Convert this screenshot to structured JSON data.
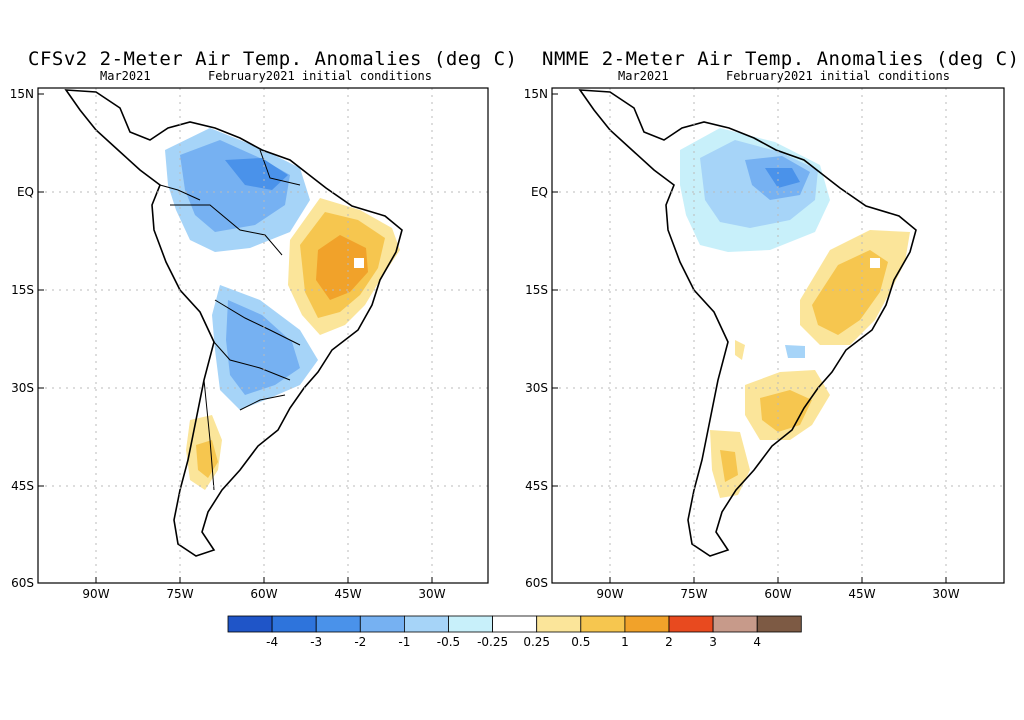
{
  "panels": [
    {
      "title": "CFSv2 2-Meter Air Temp. Anomalies (deg C)",
      "month": "Mar2021",
      "init": "February2021 initial conditions"
    },
    {
      "title": "NMME 2-Meter Air Temp. Anomalies (deg C)",
      "month": "Mar2021",
      "init": "February2021 initial conditions"
    }
  ],
  "axes": {
    "lat_labels": [
      "15N",
      "EQ",
      "15S",
      "30S",
      "45S",
      "60S"
    ],
    "lon_labels": [
      "90W",
      "75W",
      "60W",
      "45W",
      "30W"
    ]
  },
  "colorbar": {
    "labels": [
      "-4",
      "-3",
      "-2",
      "-1",
      "-0.5",
      "-0.25",
      "0.25",
      "0.5",
      "1",
      "2",
      "3",
      "4"
    ],
    "colors": [
      "#1f55c8",
      "#2e74dc",
      "#4a92ea",
      "#76b1f2",
      "#a6d4f8",
      "#c8f0fa",
      "#ffffff",
      "#fbe59a",
      "#f6c64f",
      "#f1a22a",
      "#e84a1f",
      "#c79a8a",
      "#7d5a44"
    ]
  },
  "colors": {
    "land_outline": "#000000",
    "grid": "#bbbbbb"
  }
}
